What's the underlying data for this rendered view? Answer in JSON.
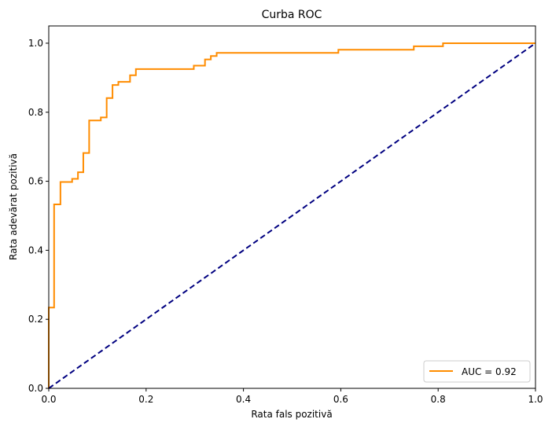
{
  "chart_data": {
    "type": "line",
    "title": "Curba ROC",
    "xlabel": "Rata fals pozitivă",
    "ylabel": "Rata adevărat pozitivă",
    "xlim": [
      0.0,
      1.0
    ],
    "ylim": [
      0.0,
      1.05
    ],
    "xticks": [
      "0.0",
      "0.2",
      "0.4",
      "0.6",
      "0.8",
      "1.0"
    ],
    "yticks": [
      "0.0",
      "0.2",
      "0.4",
      "0.6",
      "0.8",
      "1.0"
    ],
    "grid": false,
    "legend_position": "lower-right",
    "series": [
      {
        "name": "AUC = 0.92",
        "color": "#ff8c00",
        "style": "solid",
        "step": true,
        "x": [
          0.0,
          0.0,
          0.011,
          0.011,
          0.024,
          0.024,
          0.048,
          0.048,
          0.06,
          0.06,
          0.071,
          0.071,
          0.083,
          0.083,
          0.107,
          0.107,
          0.119,
          0.119,
          0.131,
          0.131,
          0.143,
          0.143,
          0.167,
          0.167,
          0.179,
          0.179,
          0.19,
          0.19,
          0.298,
          0.298,
          0.321,
          0.321,
          0.333,
          0.333,
          0.345,
          0.345,
          0.595,
          0.595,
          0.75,
          0.75,
          0.81,
          0.81,
          1.0
        ],
        "y": [
          0.0,
          0.234,
          0.234,
          0.533,
          0.533,
          0.598,
          0.598,
          0.607,
          0.607,
          0.626,
          0.626,
          0.682,
          0.682,
          0.776,
          0.776,
          0.785,
          0.785,
          0.841,
          0.841,
          0.879,
          0.879,
          0.888,
          0.888,
          0.907,
          0.907,
          0.925,
          0.925,
          0.925,
          0.925,
          0.935,
          0.935,
          0.953,
          0.953,
          0.963,
          0.963,
          0.972,
          0.972,
          0.981,
          0.981,
          0.991,
          0.991,
          1.0,
          1.0
        ]
      },
      {
        "name": "",
        "color": "#000080",
        "style": "dashed",
        "step": false,
        "x": [
          0.0,
          1.0
        ],
        "y": [
          0.0,
          1.0
        ]
      }
    ]
  }
}
